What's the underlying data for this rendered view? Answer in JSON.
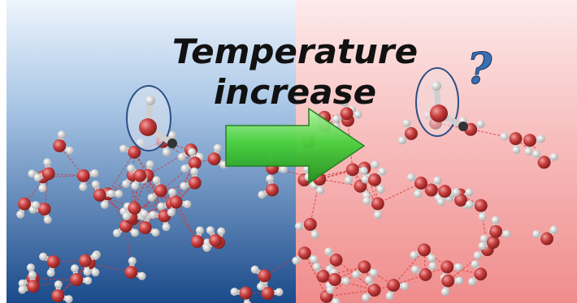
{
  "title": {
    "line1": "Temperature",
    "line2": "increase"
  },
  "question_mark": "?",
  "colors": {
    "cold_top": "#e8f2fb",
    "cold_bottom": "#1c4e8f",
    "hot_top": "#fbe4e4",
    "hot_bottom": "#f08a8a",
    "arrow": "#3fcf3f",
    "oxygen": "#c23a3a",
    "hydrogen": "#e8e8e8",
    "hbond": "#d23a3a",
    "question": "#3a6fb0"
  }
}
